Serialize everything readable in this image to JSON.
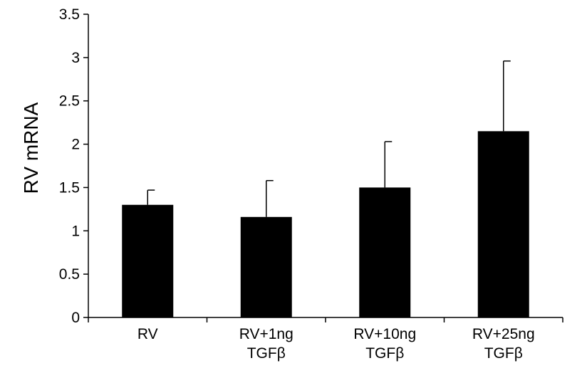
{
  "chart_data": {
    "type": "bar",
    "title": "",
    "xlabel": "",
    "ylabel": "RV mRNA",
    "ylim": [
      0,
      3.5
    ],
    "yticks": [
      0,
      0.5,
      1,
      1.5,
      2,
      2.5,
      3,
      3.5
    ],
    "ytick_labels": [
      "0",
      "0.5",
      "1",
      "1.5",
      "2",
      "2.5",
      "3",
      "3.5"
    ],
    "categories": [
      {
        "line1": "RV",
        "line2": ""
      },
      {
        "line1": "RV+1ng",
        "line2": "TGFβ"
      },
      {
        "line1": "RV+10ng",
        "line2": "TGFβ"
      },
      {
        "line1": "RV+25ng",
        "line2": "TGFβ"
      }
    ],
    "values": [
      1.3,
      1.16,
      1.5,
      2.15
    ],
    "error_upper": [
      0.17,
      0.42,
      0.53,
      0.81
    ],
    "bar_color": "#000000",
    "grid": false
  }
}
